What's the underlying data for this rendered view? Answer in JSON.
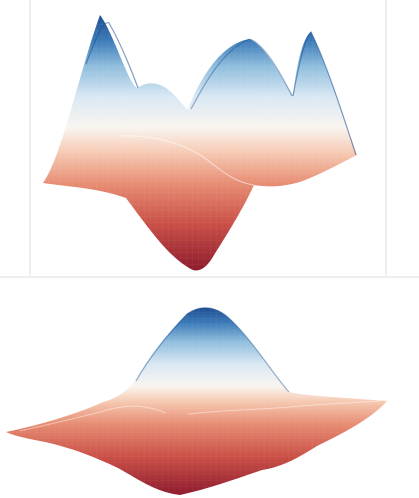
{
  "scene": {
    "colormap": [
      "#1f4f92",
      "#3c7bb8",
      "#8fbddd",
      "#d9e8f3",
      "#f9f5f0",
      "#f6c9b2",
      "#e78d73",
      "#c94f46",
      "#8e1b2e"
    ],
    "background": "#ffffff",
    "divider_color": "#dddddd",
    "panels": [
      {
        "name": "top-surface-panel"
      },
      {
        "name": "bottom-surface-panel"
      }
    ]
  }
}
